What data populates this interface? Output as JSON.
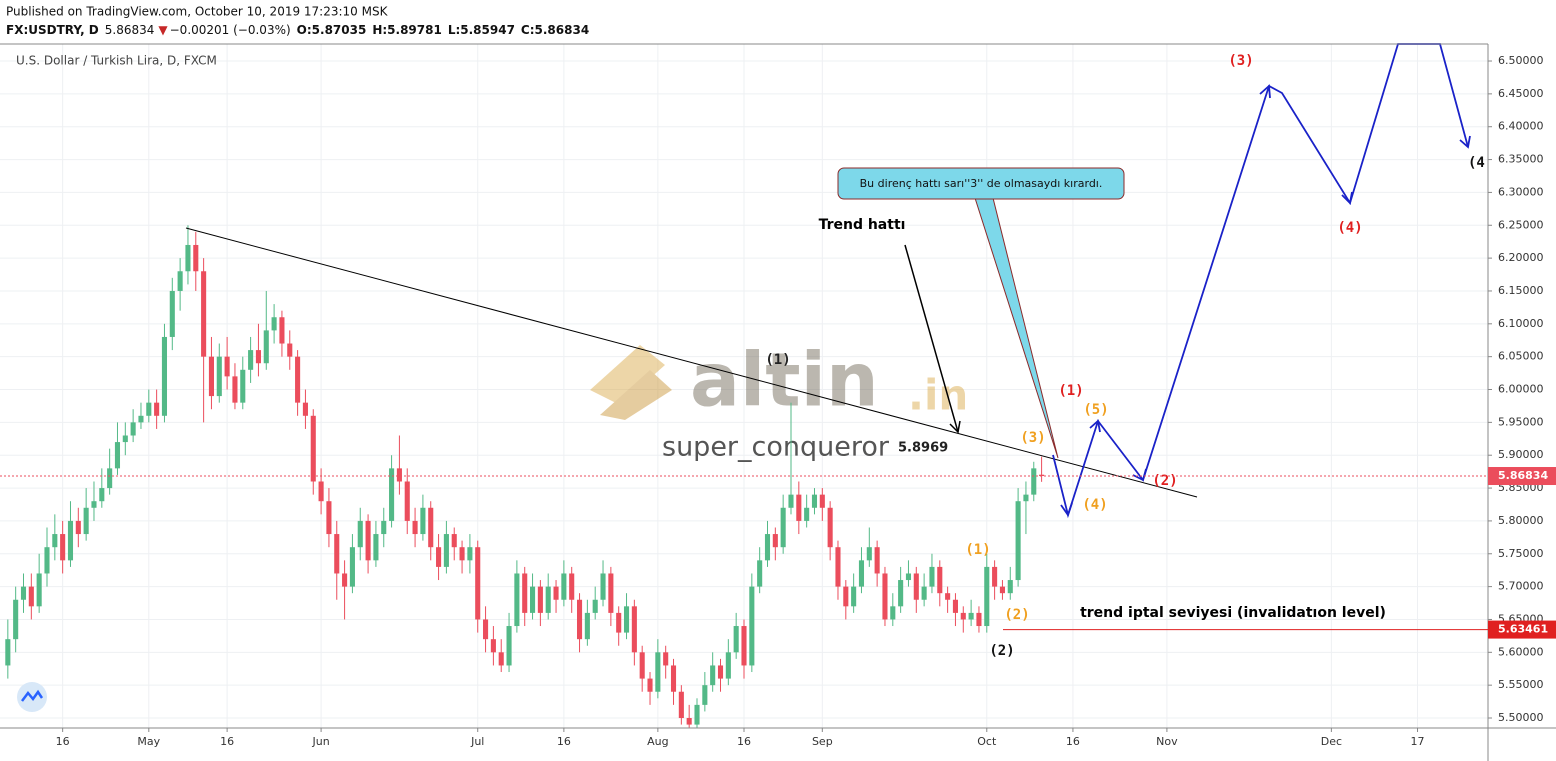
{
  "header": {
    "published": "Published on TradingView.com, October 10, 2019 17:23:10 MSK",
    "symbol": "FX:USDTRY, D",
    "last": "5.86834",
    "arrow": "▼",
    "change": "−0.00201 (−0.03%)",
    "open": "O:5.87035",
    "high": "H:5.89781",
    "low": "L:5.85947",
    "close": "C:5.86834"
  },
  "chart_data": {
    "type": "candlestick",
    "title": "U.S. Dollar / Turkish Lira, D, FXCM",
    "up_color": "#53b987",
    "down_color": "#eb4d5c",
    "ylim": [
      5.4848,
      6.5259
    ],
    "xlim": [
      -1,
      189
    ],
    "yticks": [
      {
        "value": 5.5,
        "label": "5.50000"
      },
      {
        "value": 5.55,
        "label": "5.55000"
      },
      {
        "value": 5.6,
        "label": "5.60000"
      },
      {
        "value": 5.65,
        "label": "5.65000"
      },
      {
        "value": 5.7,
        "label": "5.70000"
      },
      {
        "value": 5.75,
        "label": "5.75000"
      },
      {
        "value": 5.8,
        "label": "5.80000"
      },
      {
        "value": 5.85,
        "label": "5.85000"
      },
      {
        "value": 5.9,
        "label": "5.90000"
      },
      {
        "value": 5.95,
        "label": "5.95000"
      },
      {
        "value": 6.0,
        "label": "6.00000"
      },
      {
        "value": 6.05,
        "label": "6.05000"
      },
      {
        "value": 6.1,
        "label": "6.10000"
      },
      {
        "value": 6.15,
        "label": "6.15000"
      },
      {
        "value": 6.2,
        "label": "6.20000"
      },
      {
        "value": 6.25,
        "label": "6.25000"
      },
      {
        "value": 6.3,
        "label": "6.30000"
      },
      {
        "value": 6.35,
        "label": "6.35000"
      },
      {
        "value": 6.4,
        "label": "6.40000"
      },
      {
        "value": 6.45,
        "label": "6.45000"
      },
      {
        "value": 6.5,
        "label": "6.50000"
      }
    ],
    "xticks": [
      {
        "value": 7,
        "label": "16"
      },
      {
        "value": 18,
        "label": "May"
      },
      {
        "value": 28,
        "label": "16"
      },
      {
        "value": 40,
        "label": "Jun"
      },
      {
        "value": 60,
        "label": "Jul"
      },
      {
        "value": 71,
        "label": "16"
      },
      {
        "value": 83,
        "label": "Aug"
      },
      {
        "value": 94,
        "label": "16"
      },
      {
        "value": 104,
        "label": "Sep"
      },
      {
        "value": 125,
        "label": "Oct"
      },
      {
        "value": 136,
        "label": "16"
      },
      {
        "value": 148,
        "label": "Nov"
      },
      {
        "value": 169,
        "label": "Dec"
      },
      {
        "value": 180,
        "label": "17"
      }
    ],
    "grid": true,
    "price_lines": [
      {
        "value": 5.86834,
        "color": "#eb4d5c",
        "dotted": true
      },
      {
        "value": 5.63461,
        "color": "#e02020",
        "dotted": false
      }
    ],
    "candles": [
      [
        5.58,
        5.65,
        5.56,
        5.62
      ],
      [
        5.62,
        5.7,
        5.6,
        5.68
      ],
      [
        5.68,
        5.72,
        5.66,
        5.7
      ],
      [
        5.7,
        5.72,
        5.65,
        5.67
      ],
      [
        5.67,
        5.75,
        5.66,
        5.72
      ],
      [
        5.72,
        5.79,
        5.7,
        5.76
      ],
      [
        5.76,
        5.81,
        5.74,
        5.78
      ],
      [
        5.78,
        5.8,
        5.72,
        5.74
      ],
      [
        5.74,
        5.83,
        5.73,
        5.8
      ],
      [
        5.8,
        5.82,
        5.76,
        5.78
      ],
      [
        5.78,
        5.85,
        5.77,
        5.82
      ],
      [
        5.82,
        5.86,
        5.8,
        5.83
      ],
      [
        5.83,
        5.88,
        5.82,
        5.85
      ],
      [
        5.85,
        5.91,
        5.84,
        5.88
      ],
      [
        5.88,
        5.95,
        5.87,
        5.92
      ],
      [
        5.92,
        5.95,
        5.9,
        5.93
      ],
      [
        5.93,
        5.97,
        5.92,
        5.95
      ],
      [
        5.95,
        5.98,
        5.94,
        5.96
      ],
      [
        5.96,
        6.0,
        5.95,
        5.98
      ],
      [
        5.98,
        6.0,
        5.94,
        5.96
      ],
      [
        5.96,
        6.1,
        5.95,
        6.08
      ],
      [
        6.08,
        6.17,
        6.06,
        6.15
      ],
      [
        6.15,
        6.2,
        6.12,
        6.18
      ],
      [
        6.18,
        6.25,
        6.16,
        6.22
      ],
      [
        6.22,
        6.24,
        6.15,
        6.18
      ],
      [
        6.18,
        6.2,
        5.95,
        6.05
      ],
      [
        6.05,
        6.08,
        5.97,
        5.99
      ],
      [
        5.99,
        6.07,
        5.98,
        6.05
      ],
      [
        6.05,
        6.08,
        6.0,
        6.02
      ],
      [
        6.02,
        6.04,
        5.97,
        5.98
      ],
      [
        5.98,
        6.05,
        5.97,
        6.03
      ],
      [
        6.03,
        6.08,
        6.01,
        6.06
      ],
      [
        6.06,
        6.1,
        6.02,
        6.04
      ],
      [
        6.04,
        6.15,
        6.03,
        6.09
      ],
      [
        6.09,
        6.13,
        6.07,
        6.11
      ],
      [
        6.11,
        6.12,
        6.05,
        6.07
      ],
      [
        6.07,
        6.09,
        6.03,
        6.05
      ],
      [
        6.05,
        6.06,
        5.96,
        5.98
      ],
      [
        5.98,
        6.0,
        5.94,
        5.96
      ],
      [
        5.96,
        5.97,
        5.84,
        5.86
      ],
      [
        5.86,
        5.88,
        5.81,
        5.83
      ],
      [
        5.83,
        5.85,
        5.76,
        5.78
      ],
      [
        5.78,
        5.8,
        5.68,
        5.72
      ],
      [
        5.72,
        5.74,
        5.65,
        5.7
      ],
      [
        5.7,
        5.78,
        5.69,
        5.76
      ],
      [
        5.76,
        5.82,
        5.74,
        5.8
      ],
      [
        5.8,
        5.81,
        5.72,
        5.74
      ],
      [
        5.74,
        5.8,
        5.73,
        5.78
      ],
      [
        5.78,
        5.82,
        5.76,
        5.8
      ],
      [
        5.8,
        5.9,
        5.79,
        5.88
      ],
      [
        5.88,
        5.93,
        5.84,
        5.86
      ],
      [
        5.86,
        5.88,
        5.78,
        5.8
      ],
      [
        5.8,
        5.82,
        5.76,
        5.78
      ],
      [
        5.78,
        5.84,
        5.77,
        5.82
      ],
      [
        5.82,
        5.83,
        5.74,
        5.76
      ],
      [
        5.76,
        5.78,
        5.71,
        5.73
      ],
      [
        5.73,
        5.8,
        5.72,
        5.78
      ],
      [
        5.78,
        5.79,
        5.74,
        5.76
      ],
      [
        5.76,
        5.77,
        5.72,
        5.74
      ],
      [
        5.74,
        5.78,
        5.72,
        5.76
      ],
      [
        5.76,
        5.77,
        5.63,
        5.65
      ],
      [
        5.65,
        5.67,
        5.6,
        5.62
      ],
      [
        5.62,
        5.64,
        5.58,
        5.6
      ],
      [
        5.6,
        5.62,
        5.57,
        5.58
      ],
      [
        5.58,
        5.66,
        5.57,
        5.64
      ],
      [
        5.64,
        5.74,
        5.63,
        5.72
      ],
      [
        5.72,
        5.73,
        5.64,
        5.66
      ],
      [
        5.66,
        5.72,
        5.65,
        5.7
      ],
      [
        5.7,
        5.71,
        5.64,
        5.66
      ],
      [
        5.66,
        5.72,
        5.65,
        5.7
      ],
      [
        5.7,
        5.71,
        5.66,
        5.68
      ],
      [
        5.68,
        5.74,
        5.67,
        5.72
      ],
      [
        5.72,
        5.73,
        5.66,
        5.68
      ],
      [
        5.68,
        5.69,
        5.6,
        5.62
      ],
      [
        5.62,
        5.68,
        5.61,
        5.66
      ],
      [
        5.66,
        5.7,
        5.65,
        5.68
      ],
      [
        5.68,
        5.74,
        5.67,
        5.72
      ],
      [
        5.72,
        5.73,
        5.64,
        5.66
      ],
      [
        5.66,
        5.67,
        5.61,
        5.63
      ],
      [
        5.63,
        5.69,
        5.62,
        5.67
      ],
      [
        5.67,
        5.68,
        5.58,
        5.6
      ],
      [
        5.6,
        5.61,
        5.54,
        5.56
      ],
      [
        5.56,
        5.57,
        5.52,
        5.54
      ],
      [
        5.54,
        5.62,
        5.53,
        5.6
      ],
      [
        5.6,
        5.61,
        5.56,
        5.58
      ],
      [
        5.58,
        5.59,
        5.52,
        5.54
      ],
      [
        5.54,
        5.55,
        5.49,
        5.5
      ],
      [
        5.5,
        5.52,
        5.485,
        5.49
      ],
      [
        5.49,
        5.53,
        5.485,
        5.52
      ],
      [
        5.52,
        5.57,
        5.51,
        5.55
      ],
      [
        5.55,
        5.6,
        5.54,
        5.58
      ],
      [
        5.58,
        5.59,
        5.54,
        5.56
      ],
      [
        5.56,
        5.62,
        5.55,
        5.6
      ],
      [
        5.6,
        5.66,
        5.59,
        5.64
      ],
      [
        5.64,
        5.65,
        5.56,
        5.58
      ],
      [
        5.58,
        5.72,
        5.57,
        5.7
      ],
      [
        5.7,
        5.76,
        5.69,
        5.74
      ],
      [
        5.74,
        5.8,
        5.73,
        5.78
      ],
      [
        5.78,
        5.79,
        5.74,
        5.76
      ],
      [
        5.76,
        5.84,
        5.75,
        5.82
      ],
      [
        5.82,
        5.98,
        5.81,
        5.84
      ],
      [
        5.84,
        5.86,
        5.78,
        5.8
      ],
      [
        5.8,
        5.84,
        5.79,
        5.82
      ],
      [
        5.82,
        5.85,
        5.81,
        5.84
      ],
      [
        5.84,
        5.85,
        5.8,
        5.82
      ],
      [
        5.82,
        5.83,
        5.74,
        5.76
      ],
      [
        5.76,
        5.77,
        5.68,
        5.7
      ],
      [
        5.7,
        5.71,
        5.65,
        5.67
      ],
      [
        5.67,
        5.72,
        5.66,
        5.7
      ],
      [
        5.7,
        5.76,
        5.69,
        5.74
      ],
      [
        5.74,
        5.79,
        5.73,
        5.76
      ],
      [
        5.76,
        5.77,
        5.7,
        5.72
      ],
      [
        5.72,
        5.73,
        5.64,
        5.65
      ],
      [
        5.65,
        5.69,
        5.64,
        5.67
      ],
      [
        5.67,
        5.73,
        5.66,
        5.71
      ],
      [
        5.71,
        5.74,
        5.7,
        5.72
      ],
      [
        5.72,
        5.73,
        5.66,
        5.68
      ],
      [
        5.68,
        5.72,
        5.67,
        5.7
      ],
      [
        5.7,
        5.75,
        5.69,
        5.73
      ],
      [
        5.73,
        5.74,
        5.67,
        5.69
      ],
      [
        5.69,
        5.7,
        5.66,
        5.68
      ],
      [
        5.68,
        5.69,
        5.64,
        5.66
      ],
      [
        5.66,
        5.67,
        5.63,
        5.65
      ],
      [
        5.65,
        5.68,
        5.64,
        5.66
      ],
      [
        5.66,
        5.67,
        5.63,
        5.64
      ],
      [
        5.64,
        5.75,
        5.63,
        5.73
      ],
      [
        5.73,
        5.74,
        5.68,
        5.7
      ],
      [
        5.7,
        5.71,
        5.68,
        5.69
      ],
      [
        5.69,
        5.73,
        5.68,
        5.71
      ],
      [
        5.71,
        5.85,
        5.7,
        5.83
      ],
      [
        5.83,
        5.86,
        5.78,
        5.84
      ],
      [
        5.84,
        5.89,
        5.83,
        5.88
      ],
      [
        5.87035,
        5.89781,
        5.85947,
        5.86834
      ]
    ]
  },
  "annotations": {
    "trend": "Trend hattı",
    "callout": "Bu direnç hattı sarı''3'' de olmasaydı kırardı.",
    "invalidation": "trend iptal seviyesi (invalidatıon level)",
    "black_1": "(1)",
    "black_2": "(2)",
    "black_4": "(4",
    "red_1": "(1)",
    "red_2": "(2)",
    "red_3": "(3)",
    "red_4": "(4)",
    "orange_1": "(1)",
    "orange_2": "(2)",
    "orange_3": "(3)",
    "orange_4": "(4)",
    "orange_5": "(5)"
  },
  "watermark": {
    "brand": "altin",
    "domain": ".in",
    "user": "super_conqueror",
    "price": "5.8969"
  }
}
